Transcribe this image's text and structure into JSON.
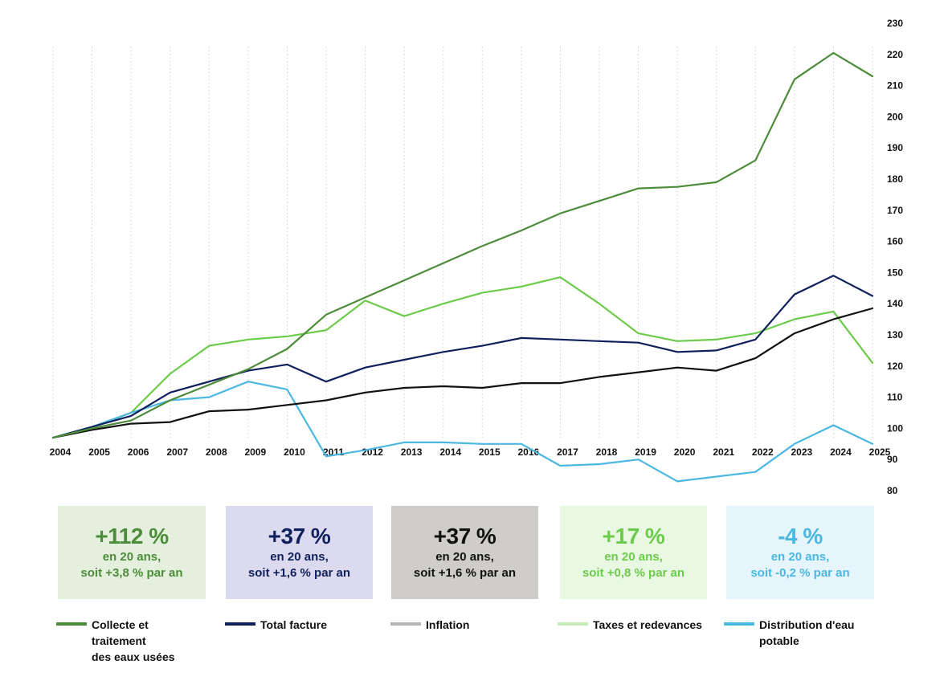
{
  "chart_data": {
    "type": "line",
    "x": [
      "2004",
      "2005",
      "2006",
      "2007",
      "2008",
      "2009",
      "2010",
      "2011",
      "2012",
      "2013",
      "2014",
      "2015",
      "2016",
      "2017",
      "2018",
      "2019",
      "2020",
      "2021",
      "2022",
      "2023",
      "2024",
      "2025"
    ],
    "ylim": [
      80,
      230
    ],
    "yticks": [
      80,
      90,
      100,
      110,
      120,
      130,
      140,
      150,
      160,
      170,
      180,
      190,
      200,
      210,
      220,
      230
    ],
    "grid": "vertical-dotted",
    "legend_position": "bottom",
    "series": [
      {
        "key": "collecte",
        "name": "Collecte et\ntraitement\ndes eaux usées",
        "color": "#4c8c3a",
        "values": [
          97,
          100,
          102.5,
          109,
          114,
          119,
          125.5,
          136.5,
          142,
          147.5,
          153,
          158.5,
          163.5,
          169,
          173,
          177,
          177.5,
          179,
          186,
          212,
          220.5,
          213
        ]
      },
      {
        "key": "total",
        "name": "Total facture",
        "color": "#10205c",
        "values": [
          97,
          100.5,
          104,
          111.5,
          115,
          118.5,
          120.5,
          115,
          119.5,
          122,
          124.5,
          126.5,
          129,
          128.5,
          128,
          127.5,
          124.5,
          125,
          128.5,
          143,
          149,
          142.5
        ]
      },
      {
        "key": "inflation",
        "name": "Inflation",
        "color": "#111111",
        "legend_color": "#b5b5b5",
        "values": [
          97,
          99.5,
          101.5,
          102,
          105.5,
          106,
          107.5,
          109,
          111.5,
          113,
          113.5,
          113,
          114.5,
          114.5,
          116.5,
          118,
          119.5,
          118.5,
          122.5,
          130.5,
          135,
          138.5
        ]
      },
      {
        "key": "taxes",
        "name": "Taxes et redevances",
        "color": "#6ccb4a",
        "legend_color": "#c6ebb8",
        "values": [
          97,
          100.5,
          105,
          117.5,
          126.5,
          128.5,
          129.5,
          131.5,
          141,
          136,
          140,
          143.5,
          145.5,
          148.5,
          140,
          130.5,
          128,
          128.5,
          130.5,
          135,
          137.5,
          121
        ]
      },
      {
        "key": "distribution",
        "name": "Distribution d'eau\npotable",
        "color": "#4ab8e2",
        "values": [
          97,
          100.5,
          105,
          109,
          110,
          115,
          112.5,
          91,
          93,
          95.5,
          95.5,
          95,
          95,
          88,
          88.5,
          90,
          83,
          84.5,
          86,
          95,
          101,
          95
        ]
      }
    ]
  },
  "kpis": [
    {
      "big": "+112 %",
      "line1": "en 20 ans,",
      "line2": "soit +3,8 % par an"
    },
    {
      "big": "+37 %",
      "line1": "en 20 ans,",
      "line2": "soit +1,6 % par an"
    },
    {
      "big": "+37 %",
      "line1": "en 20 ans,",
      "line2": "soit +1,6 % par an"
    },
    {
      "big": "+17 %",
      "line1": "en 20 ans,",
      "line2": "soit +0,8 % par an"
    },
    {
      "big": "-4 %",
      "line1": "en 20 ans,",
      "line2": "soit -0,2 % par an"
    }
  ],
  "colors": {
    "kpi_bg": [
      "#e4f0dd",
      "#dcdaee",
      "#cfcdc9",
      "#e9f8e3",
      "#e6f4fb"
    ],
    "kpi_fg": [
      "#4c8c3a",
      "#10205c",
      "#111111",
      "#6ccb4a",
      "#4ab8e2"
    ]
  }
}
